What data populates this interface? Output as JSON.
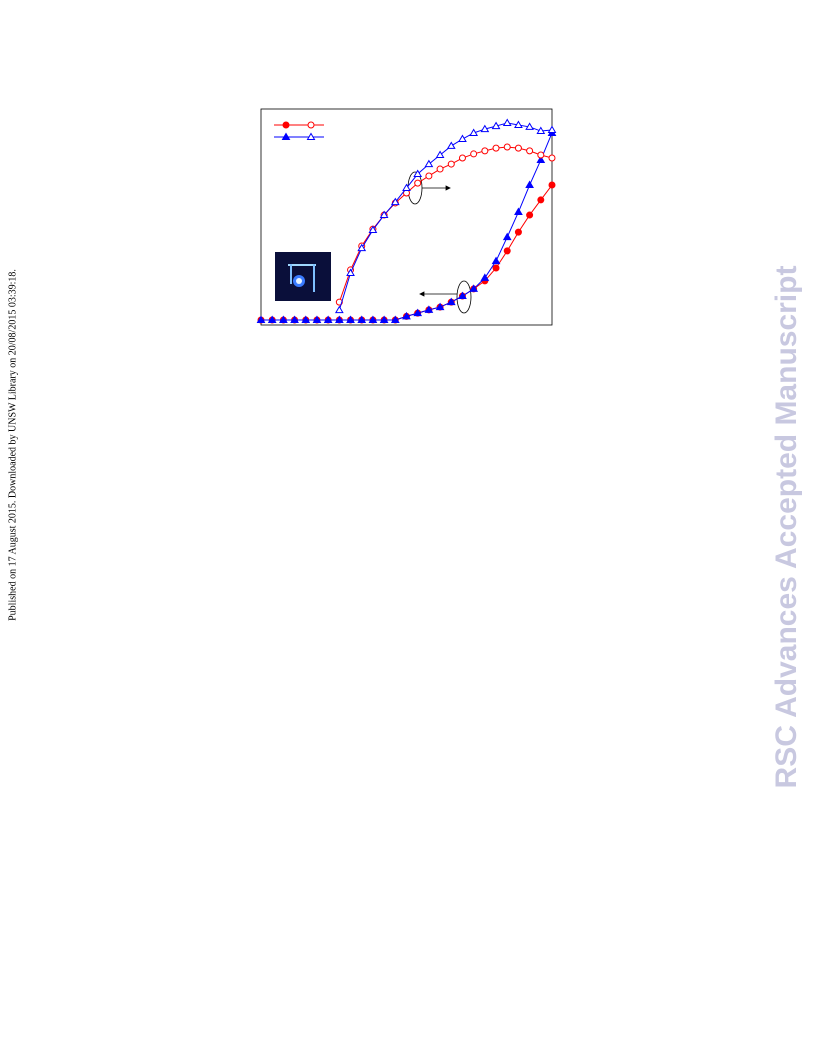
{
  "side_note": "Published on 17 August 2015. Downloaded by UNSW Library on 20/08/2015 03:39:18.",
  "watermark": "RSC Advances Accepted Manuscript",
  "chart_data": {
    "type": "line",
    "x": [
      0,
      1,
      2,
      3,
      4,
      5,
      6,
      7,
      8,
      9,
      10,
      11,
      12,
      13,
      14,
      15,
      16,
      17,
      18,
      19,
      20,
      21,
      22,
      23,
      24,
      25,
      26
    ],
    "xlim": [
      0,
      26
    ],
    "ylim": [
      0,
      1
    ],
    "series": [
      {
        "color": "#ff0000",
        "marker": "filled-circle",
        "values": [
          0.023,
          0.023,
          0.023,
          0.023,
          0.023,
          0.023,
          0.023,
          0.023,
          0.023,
          0.023,
          0.023,
          0.023,
          0.023,
          0.04,
          0.055,
          0.07,
          0.083,
          0.106,
          0.134,
          0.167,
          0.204,
          0.264,
          0.343,
          0.43,
          0.509,
          0.579,
          0.648
        ]
      },
      {
        "color": "#0000ff",
        "marker": "filled-triangle",
        "values": [
          0.023,
          0.023,
          0.023,
          0.023,
          0.023,
          0.023,
          0.023,
          0.023,
          0.023,
          0.023,
          0.023,
          0.023,
          0.023,
          0.04,
          0.055,
          0.07,
          0.083,
          0.106,
          0.134,
          0.167,
          0.218,
          0.296,
          0.407,
          0.523,
          0.648,
          0.764,
          0.889
        ]
      },
      {
        "color": "#ff0000",
        "marker": "open-circle",
        "values": [
          null,
          null,
          null,
          null,
          null,
          null,
          null,
          0.106,
          0.255,
          0.366,
          0.444,
          0.509,
          0.565,
          0.611,
          0.657,
          0.69,
          0.722,
          0.745,
          0.773,
          0.792,
          0.806,
          0.819,
          0.824,
          0.819,
          0.806,
          0.787,
          0.773
        ]
      },
      {
        "color": "#0000ff",
        "marker": "open-triangle",
        "values": [
          null,
          null,
          null,
          null,
          null,
          null,
          null,
          0.069,
          0.241,
          0.356,
          0.44,
          0.509,
          0.569,
          0.634,
          0.699,
          0.745,
          0.787,
          0.829,
          0.861,
          0.889,
          0.907,
          0.921,
          0.935,
          0.926,
          0.917,
          0.898,
          0.903
        ]
      }
    ]
  }
}
